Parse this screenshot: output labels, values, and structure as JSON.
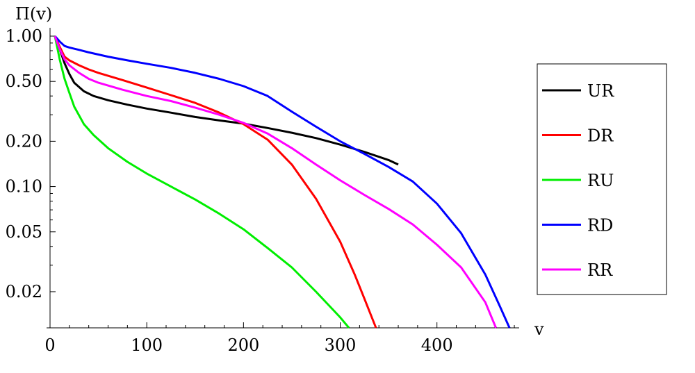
{
  "chart_data": {
    "type": "line",
    "title": "",
    "xlabel": "v",
    "ylabel": "Π(v)",
    "y_scale": "log",
    "xlim": [
      0,
      485
    ],
    "ylim": [
      0.0115,
      1.0
    ],
    "x_ticks": [
      {
        "value": 0,
        "label": "0"
      },
      {
        "value": 100,
        "label": "100"
      },
      {
        "value": 200,
        "label": "200"
      },
      {
        "value": 300,
        "label": "300"
      },
      {
        "value": 400,
        "label": "400"
      }
    ],
    "y_ticks": [
      {
        "value": 1.0,
        "label": "1.00"
      },
      {
        "value": 0.5,
        "label": "0.50"
      },
      {
        "value": 0.2,
        "label": "0.20"
      },
      {
        "value": 0.1,
        "label": "0.10"
      },
      {
        "value": 0.05,
        "label": "0.05"
      },
      {
        "value": 0.02,
        "label": "0.02"
      }
    ],
    "grid": false,
    "legend_position": "right",
    "series": [
      {
        "name": "UR",
        "color": "#000000",
        "x": [
          5,
          10,
          15,
          20,
          25,
          35,
          45,
          60,
          80,
          100,
          125,
          150,
          175,
          200,
          225,
          250,
          275,
          300,
          325,
          350,
          360
        ],
        "y": [
          1.0,
          0.82,
          0.66,
          0.56,
          0.49,
          0.43,
          0.4,
          0.375,
          0.35,
          0.33,
          0.31,
          0.29,
          0.275,
          0.262,
          0.245,
          0.228,
          0.21,
          0.19,
          0.17,
          0.15,
          0.14
        ]
      },
      {
        "name": "DR",
        "color": "#ff0000",
        "x": [
          5,
          10,
          15,
          20,
          30,
          40,
          50,
          75,
          100,
          125,
          150,
          175,
          200,
          225,
          250,
          275,
          300,
          315,
          325,
          337
        ],
        "y": [
          1.0,
          0.85,
          0.73,
          0.69,
          0.64,
          0.6,
          0.57,
          0.51,
          0.455,
          0.405,
          0.36,
          0.31,
          0.26,
          0.205,
          0.14,
          0.083,
          0.043,
          0.026,
          0.018,
          0.0115
        ]
      },
      {
        "name": "RU",
        "color": "#00ee00",
        "x": [
          5,
          10,
          15,
          20,
          25,
          35,
          45,
          60,
          80,
          100,
          125,
          150,
          175,
          200,
          225,
          250,
          275,
          300,
          309
        ],
        "y": [
          1.0,
          0.7,
          0.52,
          0.42,
          0.34,
          0.26,
          0.22,
          0.18,
          0.146,
          0.122,
          0.1,
          0.082,
          0.066,
          0.052,
          0.039,
          0.029,
          0.02,
          0.0135,
          0.0115
        ]
      },
      {
        "name": "RD",
        "color": "#0000ff",
        "x": [
          5,
          10,
          15,
          20,
          30,
          40,
          60,
          80,
          100,
          125,
          150,
          175,
          200,
          225,
          250,
          275,
          300,
          325,
          350,
          375,
          400,
          425,
          450,
          465,
          475
        ],
        "y": [
          1.0,
          0.92,
          0.86,
          0.84,
          0.81,
          0.78,
          0.73,
          0.69,
          0.655,
          0.615,
          0.57,
          0.52,
          0.465,
          0.4,
          0.315,
          0.25,
          0.2,
          0.165,
          0.135,
          0.108,
          0.077,
          0.049,
          0.026,
          0.016,
          0.0115
        ]
      },
      {
        "name": "RR",
        "color": "#ff00ff",
        "x": [
          5,
          10,
          15,
          20,
          30,
          40,
          50,
          75,
          100,
          125,
          150,
          175,
          200,
          225,
          250,
          275,
          300,
          325,
          350,
          375,
          400,
          425,
          450,
          461
        ],
        "y": [
          1.0,
          0.82,
          0.7,
          0.64,
          0.57,
          0.52,
          0.49,
          0.44,
          0.4,
          0.37,
          0.335,
          0.3,
          0.265,
          0.225,
          0.18,
          0.14,
          0.11,
          0.088,
          0.071,
          0.056,
          0.041,
          0.029,
          0.017,
          0.0115
        ]
      }
    ]
  }
}
